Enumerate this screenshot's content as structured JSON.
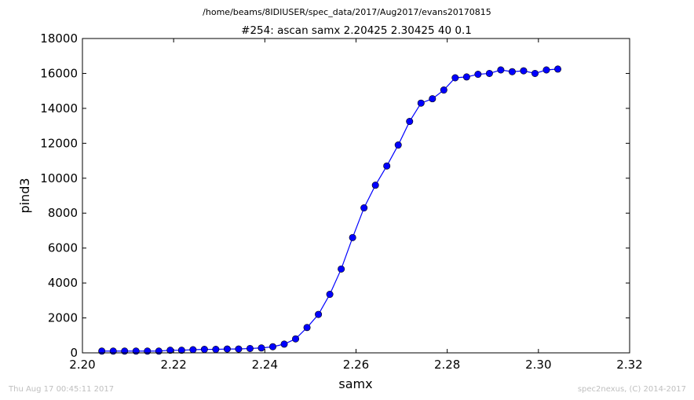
{
  "chart_data": {
    "type": "line",
    "suptitle": "/home/beams/8IDIUSER/spec_data/2017/Aug2017/evans20170815",
    "title": "#254: ascan  samx 2.20425 2.30425  40 0.1",
    "xlabel": "samx",
    "ylabel": "pind3",
    "xlim": [
      2.2,
      2.32
    ],
    "ylim": [
      0,
      18000
    ],
    "xticks": [
      "2.20",
      "2.22",
      "2.24",
      "2.26",
      "2.28",
      "2.30",
      "2.32"
    ],
    "xtick_values": [
      2.2,
      2.22,
      2.24,
      2.26,
      2.28,
      2.3,
      2.32
    ],
    "yticks": [
      "0",
      "2000",
      "4000",
      "6000",
      "8000",
      "10000",
      "12000",
      "14000",
      "16000",
      "18000"
    ],
    "ytick_values": [
      0,
      2000,
      4000,
      6000,
      8000,
      10000,
      12000,
      14000,
      16000,
      18000
    ],
    "grid": false,
    "color": "#0000ff",
    "marker": "circle",
    "x": [
      2.20425,
      2.20675,
      2.20925,
      2.21175,
      2.21425,
      2.21675,
      2.21925,
      2.22175,
      2.22425,
      2.22675,
      2.22925,
      2.23175,
      2.23425,
      2.23675,
      2.23925,
      2.24175,
      2.24425,
      2.24675,
      2.24925,
      2.25175,
      2.25425,
      2.25675,
      2.25925,
      2.26175,
      2.26425,
      2.26675,
      2.26925,
      2.27175,
      2.27425,
      2.27675,
      2.27925,
      2.28175,
      2.28425,
      2.28675,
      2.28925,
      2.29175,
      2.29425,
      2.29675,
      2.29925,
      2.30175,
      2.30425
    ],
    "y": [
      100,
      100,
      100,
      100,
      100,
      100,
      150,
      150,
      180,
      200,
      200,
      220,
      220,
      250,
      280,
      350,
      500,
      800,
      1450,
      2200,
      3350,
      4800,
      6600,
      8300,
      9600,
      10700,
      11900,
      13250,
      14300,
      14550,
      15050,
      15750,
      15800,
      15950,
      16000,
      16200,
      16100,
      16150,
      16000,
      16200,
      16250
    ]
  },
  "footer": {
    "timestamp": "Thu Aug 17 00:45:11 2017",
    "credit": "spec2nexus, (C) 2014-2017"
  }
}
